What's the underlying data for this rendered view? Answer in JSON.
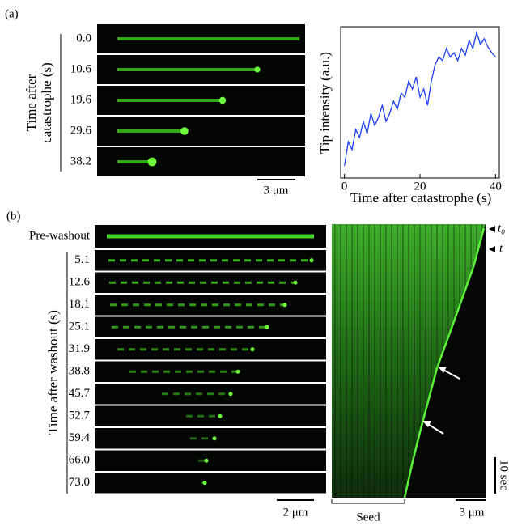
{
  "panel_a": {
    "label": "(a)",
    "y_label": [
      "Time after",
      "catastrophe (s)"
    ],
    "times": [
      "0.0",
      "10.6",
      "19.6",
      "29.6",
      "38.2"
    ],
    "scale_bar": "3 μm"
  },
  "chart_data": {
    "type": "line",
    "x_label": "Time after catastrophe (s)",
    "y_label": "Tip intensity (a.u.)",
    "x": [
      0,
      1,
      2,
      3,
      4,
      5,
      6,
      7,
      8,
      9,
      10,
      11,
      12,
      13,
      14,
      15,
      16,
      17,
      18,
      19,
      20,
      21,
      22,
      23,
      24,
      25,
      26,
      27,
      28,
      29,
      30,
      31,
      32,
      33,
      34,
      35,
      36,
      37,
      38,
      39,
      40
    ],
    "series": [
      {
        "color": "#1a3cff",
        "values": [
          0.4,
          1.2,
          0.94,
          1.6,
          1.34,
          1.87,
          1.47,
          2.14,
          1.74,
          2.0,
          2.4,
          1.87,
          2.14,
          2.54,
          2.27,
          2.81,
          2.67,
          3.2,
          2.94,
          3.34,
          2.67,
          2.94,
          2.4,
          3.2,
          3.74,
          4.0,
          3.88,
          4.28,
          4.0,
          4.14,
          3.88,
          4.28,
          4.06,
          4.55,
          4.28,
          4.81,
          4.41,
          4.6,
          4.33,
          4.14,
          4.0
        ]
      }
    ],
    "xlim": [
      -1,
      41
    ],
    "ylim": [
      0,
      5
    ],
    "xticks": [
      0,
      20,
      40
    ]
  },
  "panel_b": {
    "label": "(b)",
    "pre": "Pre-washout",
    "y_label": "Time after washout (s)",
    "times": [
      "5.1",
      "12.6",
      "18.1",
      "25.1",
      "31.9",
      "38.8",
      "45.7",
      "52.7",
      "59.4",
      "66.0",
      "73.0"
    ],
    "scale_bar": "2 μm",
    "kymograph": {
      "markers": [
        "t₀",
        "t"
      ],
      "time_scale": "10 sec",
      "seed": "Seed",
      "scale_bar": "3 μm"
    }
  }
}
